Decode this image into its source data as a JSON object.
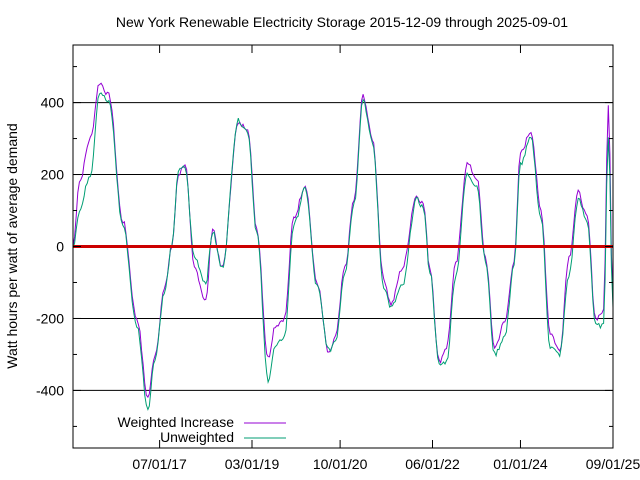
{
  "chart_data": {
    "type": "line",
    "title": "New York Renewable Electricity Storage 2015-12-09 through 2025-09-01",
    "xlabel": "",
    "ylabel": "Watt hours per watt of average demand",
    "x_tick_labels": [
      "07/01/17",
      "03/01/19",
      "10/01/20",
      "06/01/22",
      "01/01/24",
      "09/01/25"
    ],
    "y_tick_labels": [
      "400",
      "200",
      "0",
      "-200",
      "-400"
    ],
    "xlim": [
      "2015-12-09",
      "2025-09-01"
    ],
    "ylim": [
      -560,
      560
    ],
    "grid": "horizontal lines at major y ticks",
    "legend_position": "bottom-left",
    "zero_line_color": "#cc0000",
    "series": [
      {
        "name": "Weighted Increase",
        "color": "#9400d3",
        "x": [
          "2015-12-09",
          "2016-01-20",
          "2016-04-01",
          "2016-06-01",
          "2016-08-01",
          "2016-11-01",
          "2017-02-01",
          "2017-04-15",
          "2017-06-01",
          "2017-08-01",
          "2017-09-20",
          "2017-11-01",
          "2017-12-15",
          "2018-02-15",
          "2018-05-01",
          "2018-06-15",
          "2018-08-15",
          "2018-12-01",
          "2019-02-01",
          "2019-04-01",
          "2019-06-15",
          "2019-08-01",
          "2019-10-01",
          "2019-12-01",
          "2020-02-15",
          "2020-05-01",
          "2020-07-20",
          "2020-09-01",
          "2020-11-01",
          "2021-01-01",
          "2021-03-01",
          "2021-05-01",
          "2021-07-15",
          "2021-09-01",
          "2021-11-15",
          "2022-02-15",
          "2022-04-01",
          "2022-05-15",
          "2022-07-15",
          "2022-09-01",
          "2022-11-01",
          "2023-01-15",
          "2023-03-20",
          "2023-05-15",
          "2023-07-15",
          "2023-09-20",
          "2023-11-20",
          "2024-01-01",
          "2024-03-10",
          "2024-05-15",
          "2024-07-15",
          "2024-09-15",
          "2024-11-15",
          "2025-01-15",
          "2025-03-15",
          "2025-05-10",
          "2025-07-01",
          "2025-08-01",
          "2025-09-01"
        ],
        "values": [
          0,
          180,
          300,
          455,
          420,
          70,
          -200,
          -420,
          -300,
          -120,
          0,
          200,
          230,
          -60,
          -150,
          50,
          -60,
          340,
          330,
          50,
          -310,
          -220,
          -200,
          80,
          170,
          -100,
          -300,
          -250,
          -60,
          130,
          420,
          300,
          -90,
          -160,
          -60,
          140,
          120,
          -60,
          -320,
          -280,
          -50,
          230,
          190,
          -30,
          -280,
          -210,
          -40,
          260,
          320,
          100,
          -240,
          -290,
          -30,
          150,
          80,
          -200,
          -180,
          390,
          -150
        ]
      },
      {
        "name": "Unweighted",
        "color": "#009e73",
        "x": [
          "2015-12-09",
          "2016-01-20",
          "2016-04-01",
          "2016-06-01",
          "2016-08-01",
          "2016-11-01",
          "2017-02-01",
          "2017-04-15",
          "2017-06-01",
          "2017-08-01",
          "2017-09-20",
          "2017-11-01",
          "2017-12-15",
          "2018-02-15",
          "2018-05-01",
          "2018-06-15",
          "2018-08-15",
          "2018-12-01",
          "2019-02-01",
          "2019-04-01",
          "2019-06-15",
          "2019-08-01",
          "2019-10-01",
          "2019-12-01",
          "2020-02-15",
          "2020-05-01",
          "2020-07-20",
          "2020-09-01",
          "2020-11-01",
          "2021-01-01",
          "2021-03-01",
          "2021-05-01",
          "2021-07-15",
          "2021-09-01",
          "2021-11-15",
          "2022-02-15",
          "2022-04-01",
          "2022-05-15",
          "2022-07-15",
          "2022-09-01",
          "2022-11-01",
          "2023-01-15",
          "2023-03-20",
          "2023-05-15",
          "2023-07-15",
          "2023-09-20",
          "2023-11-20",
          "2024-01-01",
          "2024-03-10",
          "2024-05-15",
          "2024-07-15",
          "2024-09-15",
          "2024-11-15",
          "2025-01-15",
          "2025-03-15",
          "2025-05-10",
          "2025-07-01",
          "2025-08-01",
          "2025-09-01"
        ],
        "values": [
          0,
          100,
          200,
          430,
          400,
          60,
          -220,
          -450,
          -310,
          -130,
          0,
          210,
          220,
          -30,
          -100,
          40,
          -60,
          350,
          320,
          40,
          -370,
          -280,
          -250,
          60,
          160,
          -110,
          -290,
          -260,
          -70,
          120,
          410,
          290,
          -110,
          -170,
          -110,
          130,
          110,
          -70,
          -330,
          -320,
          -80,
          200,
          170,
          -40,
          -300,
          -250,
          -50,
          230,
          300,
          80,
          -280,
          -300,
          -80,
          130,
          70,
          -220,
          -220,
          310,
          -170
        ]
      }
    ]
  }
}
